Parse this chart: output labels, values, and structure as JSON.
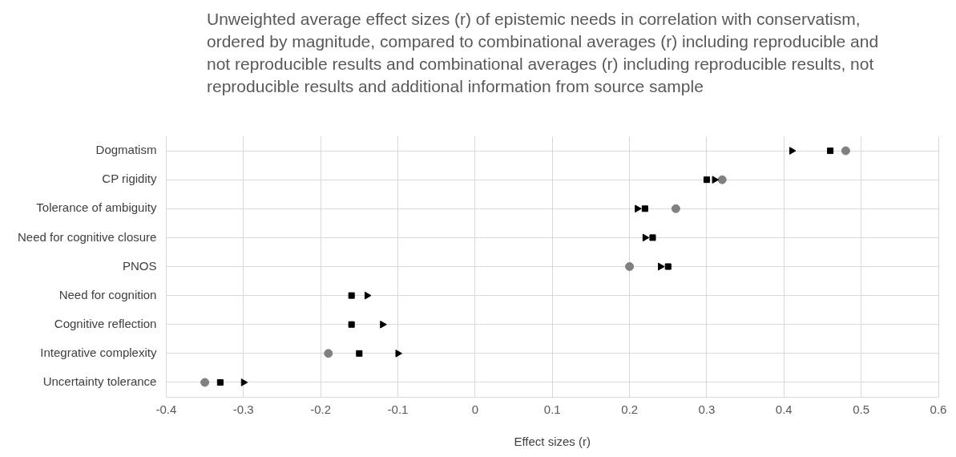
{
  "chart_data": {
    "type": "scatter",
    "orientation": "horizontal",
    "title": "Unweighted  average effect sizes (r) of epistemic needs in correlation with conservatism, ordered by magnitude, compared to combinational averages (r) including reproducible and not reproducible results and combinational averages (r) including reproducible results, not reproducible results and additional information from source sample",
    "xlabel": "Effect sizes (r)",
    "categories": [
      "Dogmatism",
      "CP rigidity",
      "Tolerance of ambiguity",
      "Need for cognitive closure",
      "PNOS",
      "Need for cognition",
      "Cognitive reflection",
      "Integrative complexity",
      "Uncertainty tolerance"
    ],
    "series": [
      {
        "color": "#000000",
        "marker": "square",
        "values": [
          0.46,
          0.3,
          0.22,
          0.23,
          0.25,
          -0.16,
          -0.16,
          -0.15,
          -0.33
        ]
      },
      {
        "color": "#000000",
        "marker": "triangle",
        "values": [
          0.41,
          0.31,
          0.21,
          0.22,
          0.24,
          -0.14,
          -0.12,
          -0.1,
          -0.3
        ]
      },
      {
        "color": "#808080",
        "marker": "circle",
        "values": [
          0.48,
          0.32,
          0.26,
          null,
          0.2,
          null,
          null,
          -0.19,
          -0.35
        ]
      }
    ],
    "xlim": [
      -0.4,
      0.6
    ],
    "xticks": [
      -0.4,
      -0.3,
      -0.2,
      -0.1,
      0,
      0.1,
      0.2,
      0.3,
      0.4,
      0.5,
      0.6
    ],
    "grid": true,
    "legend": false
  }
}
